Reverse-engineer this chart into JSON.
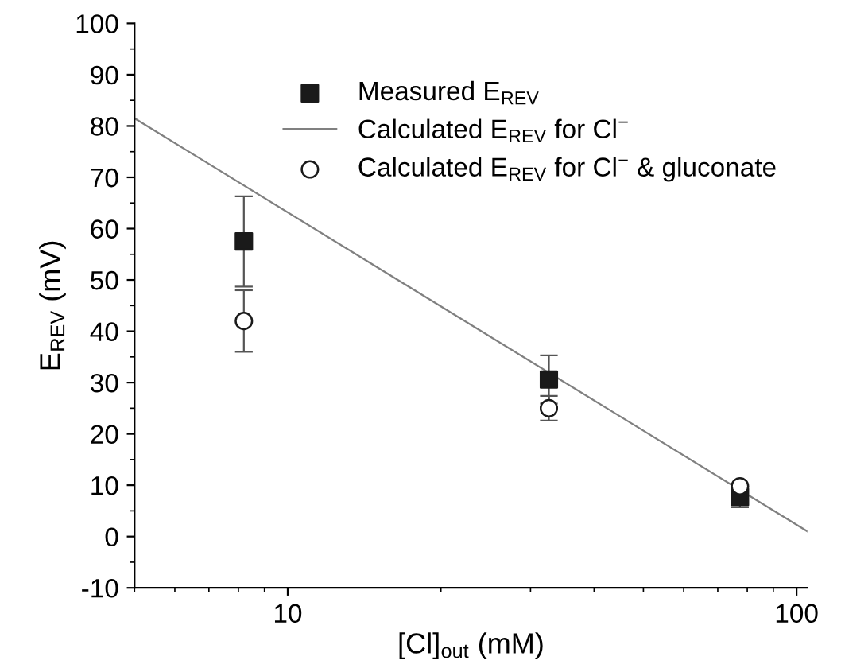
{
  "chart_data": {
    "type": "scatter",
    "xlabel": "[Cl]$_{out}$ (mM)",
    "ylabel": "E$_{REV}$ (mV)",
    "log": "x",
    "xlim": [
      5,
      105
    ],
    "xticks": [
      10,
      100
    ],
    "ylim": [
      -10,
      100
    ],
    "yticks": [
      -10,
      0,
      10,
      20,
      30,
      40,
      50,
      60,
      70,
      80,
      90,
      100
    ],
    "grid": false,
    "legend": "top right",
    "series": [
      {
        "name": "Measured E$_{REV}$",
        "marker": "square",
        "color": "#1a1a1a",
        "x": [
          8.2,
          32.6,
          77.4
        ],
        "values": [
          57.5,
          30.6,
          7.7
        ],
        "errors": [
          8.8,
          4.7,
          2
        ]
      },
      {
        "name": "Calculated E$_{REV}$ for Cl$^{−}$",
        "type": "line",
        "marker": "none",
        "line_style": "solid",
        "color": "#808080",
        "x": [
          5,
          105
        ],
        "values": [
          81.5,
          1
        ]
      },
      {
        "name": "Calculated E$_{REV}$ for Cl$^{−}$ & gluconate",
        "marker": "circle",
        "color": "#ffffff",
        "x": [
          8.2,
          32.6,
          77.4
        ],
        "values": [
          42,
          25,
          9.8
        ],
        "errors": [
          6,
          2.4,
          null
        ]
      }
    ]
  }
}
